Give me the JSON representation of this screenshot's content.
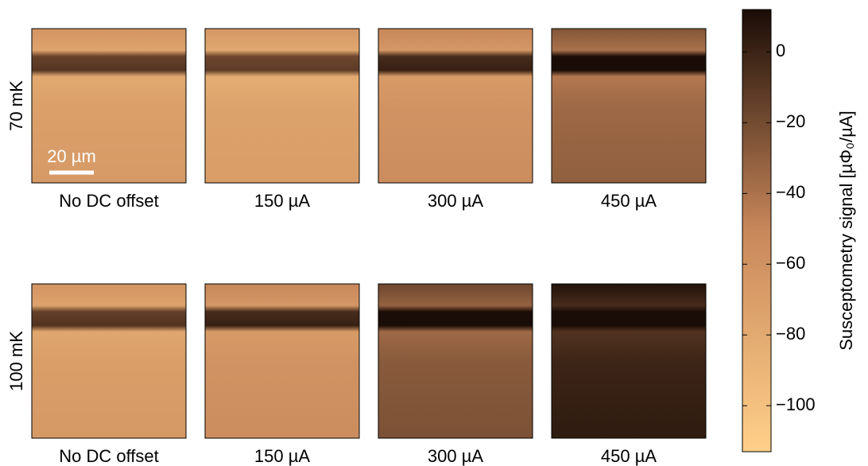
{
  "rows": [
    {
      "label": "70 mK",
      "panels": [
        "No DC offset",
        "150 µA",
        "300 µA",
        "450 µA"
      ]
    },
    {
      "label": "100 mK",
      "panels": [
        "No DC offset",
        "150 µA",
        "300 µA",
        "450 µA"
      ]
    }
  ],
  "scale_bar": "20 µm",
  "colorbar": {
    "label": "Susceptometry signal [µΦ₀/µA]",
    "lim": [
      -113,
      12
    ],
    "ticks": [
      {
        "value": 0,
        "label": "0"
      },
      {
        "value": -20,
        "label": "−20"
      },
      {
        "value": -40,
        "label": "−40"
      },
      {
        "value": -60,
        "label": "−60"
      },
      {
        "value": -80,
        "label": "−80"
      },
      {
        "value": -100,
        "label": "−100"
      }
    ],
    "colors": [
      "#ffd08a",
      "#c8875a",
      "#1a0c06"
    ]
  }
}
